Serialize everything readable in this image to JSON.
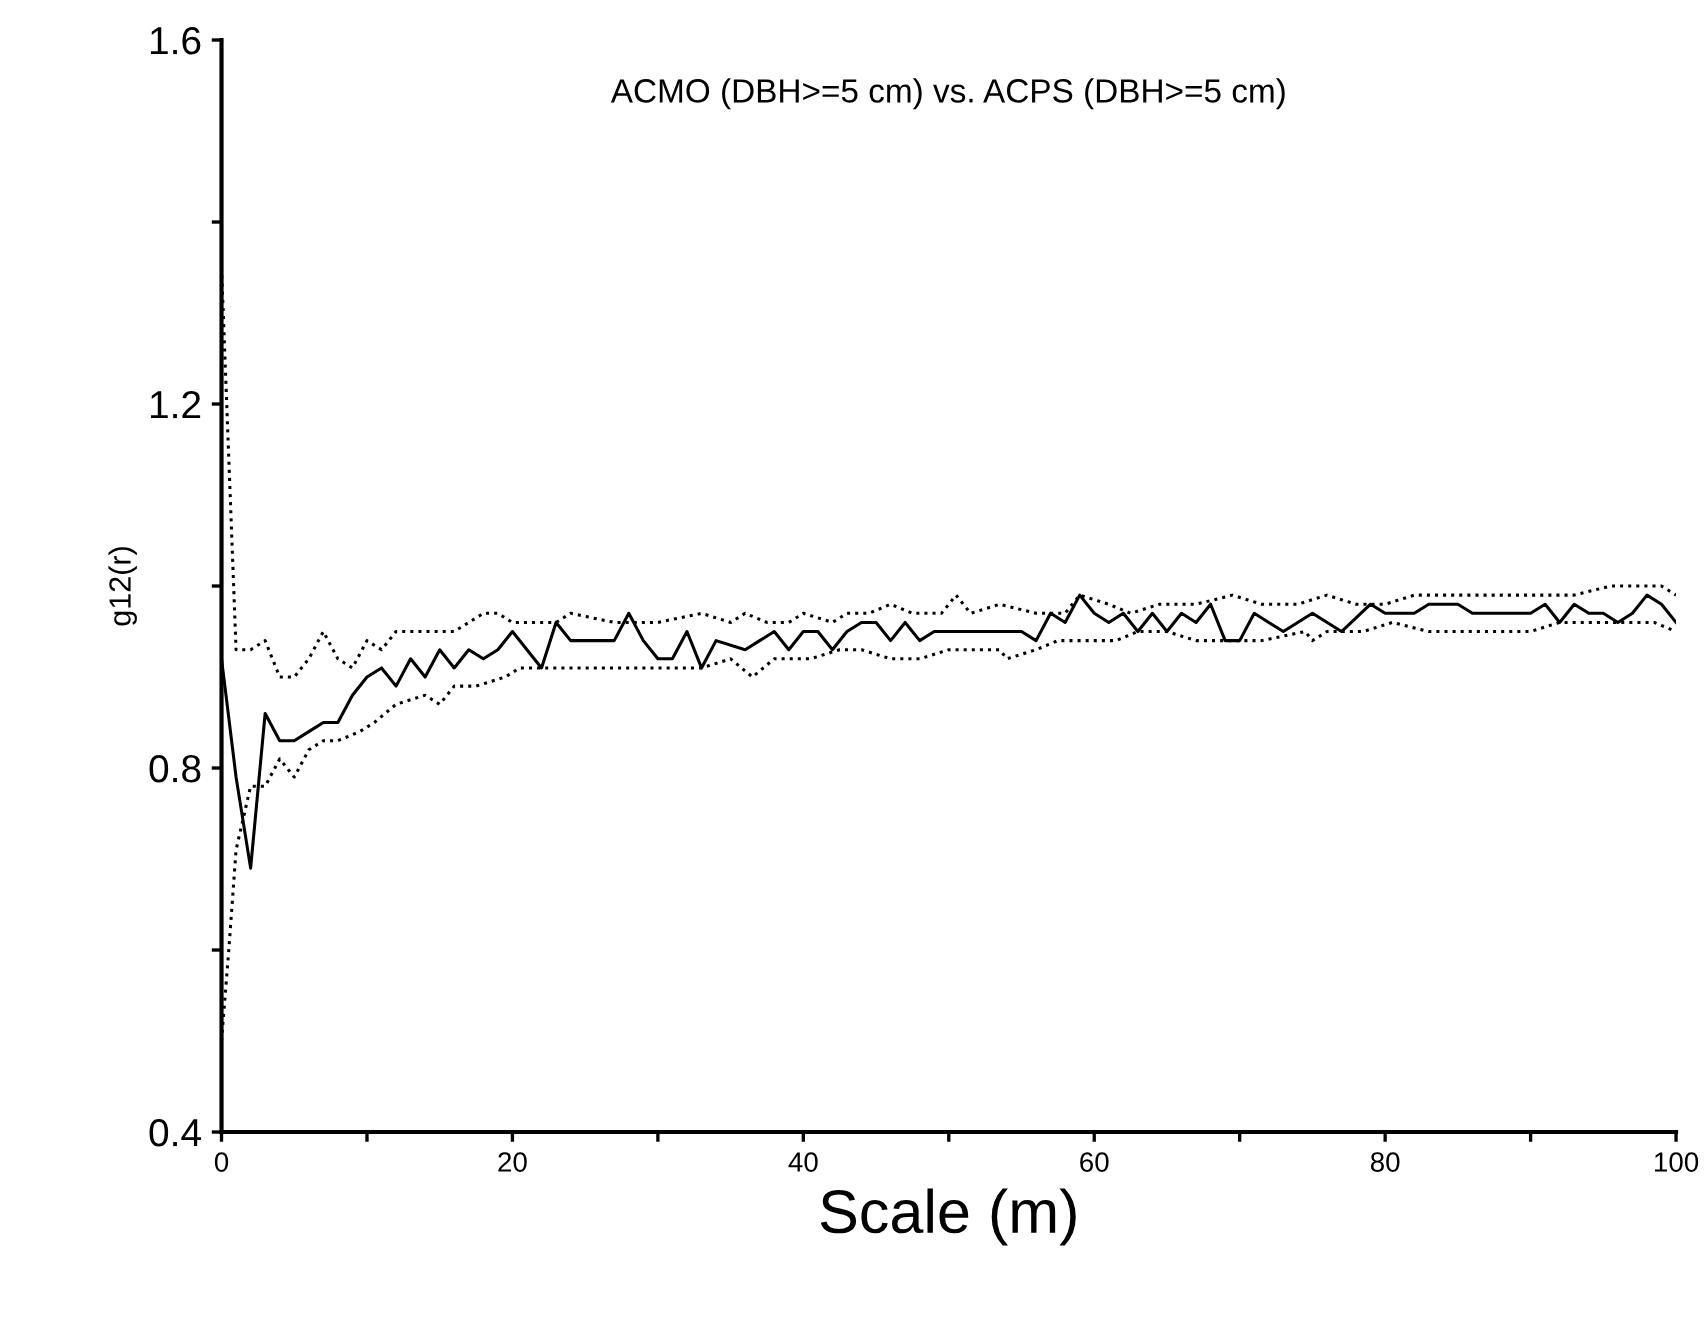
{
  "chart_data": {
    "type": "line",
    "title": "ACMO (DBH>=5 cm) vs. ACPS (DBH>=5 cm)",
    "xlabel": "Scale (m)",
    "ylabel": "g12(r)",
    "xlim": [
      0,
      100
    ],
    "ylim": [
      0.4,
      1.6
    ],
    "xticks": [
      0,
      {
        "value": 10,
        "label": null
      },
      20,
      {
        "value": 30,
        "label": null
      },
      40,
      {
        "value": 50,
        "label": null
      },
      60,
      {
        "value": 70,
        "label": null
      },
      80,
      {
        "value": 90,
        "label": null
      },
      100
    ],
    "yticks": [
      0.4,
      {
        "value": 0.6,
        "label": null
      },
      0.8,
      {
        "value": 1.0,
        "label": null
      },
      1.2,
      {
        "value": 1.4,
        "label": null
      },
      1.6
    ],
    "grid": false,
    "legend": false,
    "marker": "none",
    "series": [
      {
        "color": "#000000",
        "line_style": "solid",
        "x": [
          0,
          1,
          2,
          3,
          4,
          5,
          6,
          7,
          8,
          9,
          10,
          11,
          12,
          13,
          14,
          15,
          16,
          17,
          18,
          19,
          20,
          21,
          22,
          23,
          24,
          25,
          26,
          27,
          28,
          29,
          30,
          31,
          32,
          33,
          34,
          36,
          37,
          38,
          39,
          40,
          41,
          42,
          43,
          44,
          45,
          46,
          47,
          48,
          49,
          50,
          51,
          52,
          53,
          54,
          55,
          56,
          57,
          58,
          59,
          60,
          61,
          62,
          63,
          64,
          65,
          66,
          67,
          68,
          69,
          70,
          71,
          72,
          73,
          75,
          77,
          79,
          80,
          81,
          82,
          83,
          84,
          85,
          86,
          87,
          88,
          89,
          90,
          91,
          92,
          93,
          94,
          95,
          96,
          97,
          98,
          99,
          100
        ],
        "values": [
          0.92,
          0.79,
          0.69,
          0.86,
          0.83,
          0.83,
          0.84,
          0.85,
          0.85,
          0.88,
          0.9,
          0.91,
          0.89,
          0.92,
          0.9,
          0.93,
          0.91,
          0.93,
          0.92,
          0.93,
          0.95,
          0.93,
          0.91,
          0.96,
          0.94,
          0.94,
          0.94,
          0.94,
          0.97,
          0.94,
          0.92,
          0.92,
          0.95,
          0.91,
          0.94,
          0.93,
          0.94,
          0.95,
          0.93,
          0.95,
          0.95,
          0.93,
          0.95,
          0.96,
          0.96,
          0.94,
          0.96,
          0.94,
          0.95,
          0.95,
          0.95,
          0.95,
          0.95,
          0.95,
          0.95,
          0.94,
          0.97,
          0.96,
          0.99,
          0.97,
          0.96,
          0.97,
          0.95,
          0.97,
          0.95,
          0.97,
          0.96,
          0.98,
          0.94,
          0.94,
          0.97,
          0.96,
          0.95,
          0.97,
          0.95,
          0.98,
          0.97,
          0.97,
          0.97,
          0.98,
          0.98,
          0.98,
          0.97,
          0.97,
          0.97,
          0.97,
          0.97,
          0.98,
          0.96,
          0.98,
          0.97,
          0.97,
          0.96,
          0.97,
          0.99,
          0.98,
          0.96
        ]
      },
      {
        "color": "#000000",
        "line_style": "dotted",
        "x": [
          0,
          1,
          2,
          3,
          4,
          5,
          6,
          7,
          8,
          9,
          10,
          11,
          12,
          14,
          16,
          17,
          18,
          19,
          20,
          21,
          23,
          24,
          27,
          30,
          33,
          35,
          36,
          37.5,
          39,
          40,
          42,
          43,
          44.5,
          46,
          47.5,
          49.5,
          50.5,
          51.5,
          53.5,
          56,
          58,
          59,
          61,
          62.5,
          64.5,
          67,
          69.5,
          71.5,
          74,
          76,
          78,
          80,
          82,
          84,
          86.5,
          89,
          91,
          93,
          95.5,
          97.5,
          99,
          100
        ],
        "values": [
          1.35,
          0.93,
          0.93,
          0.94,
          0.9,
          0.9,
          0.92,
          0.95,
          0.92,
          0.91,
          0.94,
          0.93,
          0.95,
          0.95,
          0.95,
          0.96,
          0.97,
          0.97,
          0.96,
          0.96,
          0.96,
          0.97,
          0.96,
          0.96,
          0.97,
          0.96,
          0.97,
          0.96,
          0.96,
          0.97,
          0.96,
          0.97,
          0.97,
          0.98,
          0.97,
          0.97,
          0.99,
          0.97,
          0.98,
          0.97,
          0.97,
          0.99,
          0.98,
          0.97,
          0.98,
          0.98,
          0.99,
          0.98,
          0.98,
          0.99,
          0.98,
          0.98,
          0.99,
          0.99,
          0.99,
          0.99,
          0.99,
          0.99,
          1.0,
          1.0,
          1.0,
          0.99
        ]
      },
      {
        "color": "#000000",
        "line_style": "dotted",
        "x": [
          0,
          0.5,
          1,
          2,
          3,
          4,
          5,
          6,
          7,
          8,
          9.5,
          10.5,
          12,
          14,
          15,
          16,
          17.5,
          19.5,
          20.5,
          22,
          24,
          26.5,
          28.5,
          30.5,
          31.5,
          33,
          35,
          36.5,
          38,
          40.5,
          42.5,
          44,
          46,
          48,
          50,
          52,
          53.5,
          54,
          56,
          57.5,
          59.5,
          61.5,
          63,
          65,
          67,
          69.5,
          71.5,
          74.5,
          75,
          76,
          78.5,
          80.5,
          83,
          85,
          87.5,
          90,
          92,
          94.5,
          97,
          98.5,
          100
        ],
        "values": [
          0.5,
          0.6,
          0.71,
          0.78,
          0.78,
          0.81,
          0.79,
          0.82,
          0.83,
          0.83,
          0.84,
          0.85,
          0.87,
          0.88,
          0.87,
          0.89,
          0.89,
          0.9,
          0.91,
          0.91,
          0.91,
          0.91,
          0.91,
          0.91,
          0.91,
          0.91,
          0.92,
          0.9,
          0.92,
          0.92,
          0.93,
          0.93,
          0.92,
          0.92,
          0.93,
          0.93,
          0.93,
          0.92,
          0.93,
          0.94,
          0.94,
          0.94,
          0.95,
          0.95,
          0.94,
          0.94,
          0.94,
          0.95,
          0.94,
          0.95,
          0.95,
          0.96,
          0.95,
          0.95,
          0.95,
          0.95,
          0.96,
          0.96,
          0.96,
          0.96,
          0.95
        ]
      }
    ]
  }
}
